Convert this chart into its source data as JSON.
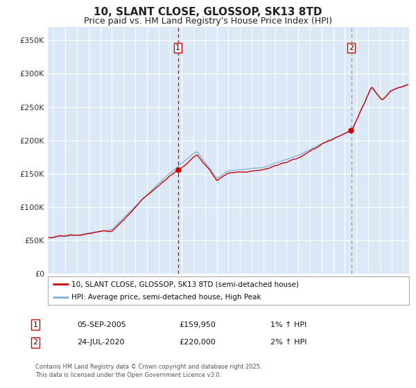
{
  "title": "10, SLANT CLOSE, GLOSSOP, SK13 8TD",
  "subtitle": "Price paid vs. HM Land Registry's House Price Index (HPI)",
  "title_fontsize": 11,
  "subtitle_fontsize": 9,
  "background_color": "#ffffff",
  "plot_bg_color": "#dce8f5",
  "grid_color": "#ffffff",
  "hpi_line_color": "#7bafd4",
  "price_line_color": "#cc0000",
  "vline1_color": "#cc0000",
  "vline2_color": "#8899aa",
  "marker1_x": 2005.67,
  "marker1_y": 159950,
  "marker1_label": "1",
  "marker1_date": "05-SEP-2005",
  "marker1_price": "£159,950",
  "marker1_hpi": "1% ↑ HPI",
  "marker2_x": 2020.55,
  "marker2_y": 220000,
  "marker2_label": "2",
  "marker2_date": "24-JUL-2020",
  "marker2_price": "£220,000",
  "marker2_hpi": "2% ↑ HPI",
  "legend_line1": "10, SLANT CLOSE, GLOSSOP, SK13 8TD (semi-detached house)",
  "legend_line2": "HPI: Average price, semi-detached house, High Peak",
  "footer": "Contains HM Land Registry data © Crown copyright and database right 2025.\nThis data is licensed under the Open Government Licence v3.0.",
  "ylim": [
    0,
    370000
  ],
  "xlim_start": 1994.5,
  "xlim_end": 2025.5,
  "yticks": [
    0,
    50000,
    100000,
    150000,
    200000,
    250000,
    300000,
    350000
  ],
  "ytick_labels": [
    "£0",
    "£50K",
    "£100K",
    "£150K",
    "£200K",
    "£250K",
    "£300K",
    "£350K"
  ],
  "xticks": [
    1995,
    1996,
    1997,
    1998,
    1999,
    2000,
    2001,
    2002,
    2003,
    2004,
    2005,
    2006,
    2007,
    2008,
    2009,
    2010,
    2011,
    2012,
    2013,
    2014,
    2015,
    2016,
    2017,
    2018,
    2019,
    2020,
    2021,
    2022,
    2023,
    2024,
    2025
  ]
}
